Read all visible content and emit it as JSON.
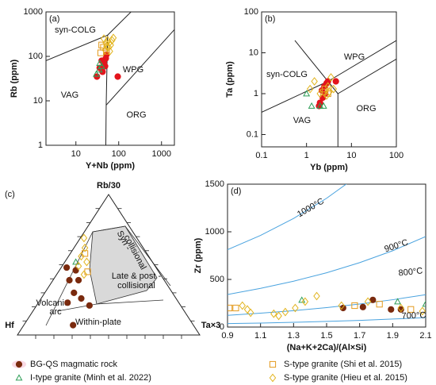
{
  "chart_data": [
    {
      "type": "scatter",
      "label": "(a)",
      "x_label": "Y+Nb (ppm)",
      "y_label": "Rb (ppm)",
      "log_x": true,
      "log_y": true,
      "xlim": [
        2,
        2000
      ],
      "ylim": [
        1,
        1000
      ],
      "xticks": [
        10,
        100,
        1000
      ],
      "yticks": [
        1,
        10,
        100,
        1000
      ],
      "field_labels": [
        "syn-COLG",
        "WPG",
        "VAG",
        "ORG"
      ],
      "boundaries": [
        {
          "x": [
            2,
            55
          ],
          "y": [
            80,
            300
          ]
        },
        {
          "x": [
            55,
            400
          ],
          "y": [
            300,
            2000
          ]
        },
        {
          "x": [
            55,
            51,
            50
          ],
          "y": [
            300,
            8,
            1
          ]
        },
        {
          "x": [
            51,
            2000
          ],
          "y": [
            8,
            400
          ]
        }
      ],
      "series": [
        {
          "name": "BG-QS magmatic rock",
          "color": "#e3141c",
          "marker": "circle",
          "x": [
            45,
            50,
            40,
            48,
            36,
            52,
            31,
            42,
            95
          ],
          "values": [
            70,
            90,
            80,
            60,
            55,
            110,
            35,
            45,
            35
          ]
        },
        {
          "name": "I-type granite (Minh et al. 2022)",
          "color": "#2e9e57",
          "marker": "triangle",
          "x": [
            30,
            35,
            40,
            36
          ],
          "values": [
            40,
            50,
            60,
            70
          ]
        },
        {
          "name": "S-type granite (Shi et al. 2015)",
          "color": "#e39a1e",
          "marker": "square",
          "x": [
            40,
            44,
            52,
            38
          ],
          "values": [
            180,
            160,
            130,
            120
          ]
        },
        {
          "name": "S-type granite (Hieu et al. 2015)",
          "color": "#e2b41e",
          "marker": "diamond",
          "x": [
            45,
            55,
            60,
            65,
            50,
            70,
            58,
            48,
            62,
            75,
            52
          ],
          "values": [
            250,
            230,
            200,
            180,
            200,
            230,
            160,
            140,
            130,
            260,
            170
          ]
        }
      ]
    },
    {
      "type": "scatter",
      "label": "(b)",
      "x_label": "Yb (ppm)",
      "y_label": "Ta (ppm)",
      "log_x": true,
      "log_y": true,
      "xlim": [
        0.1,
        100
      ],
      "ylim": [
        0.05,
        100
      ],
      "xticks": [
        0.1,
        1,
        10,
        100
      ],
      "yticks": [
        0.1,
        1,
        10,
        100
      ],
      "field_labels": [
        "WPG",
        "syn-COLG",
        "VAG",
        "ORG"
      ],
      "boundaries": [
        {
          "x": [
            0.1,
            3
          ],
          "y": [
            0.35,
            2
          ]
        },
        {
          "x": [
            0.55,
            3,
            5
          ],
          "y": [
            20,
            2,
            1
          ]
        },
        {
          "x": [
            3,
            100
          ],
          "y": [
            2,
            20
          ]
        },
        {
          "x": [
            5,
            100
          ],
          "y": [
            1,
            7
          ]
        },
        {
          "x": [
            5,
            5
          ],
          "y": [
            1,
            0.05
          ]
        }
      ],
      "series": [
        {
          "name": "BG-QS magmatic rock",
          "color": "#e3141c",
          "marker": "circle",
          "x": [
            2.5,
            3,
            2.2,
            2.8,
            2,
            2.3,
            4.5,
            2.6,
            1.9
          ],
          "values": [
            1.5,
            2,
            1.2,
            1.8,
            0.6,
            0.8,
            2,
            1,
            0.5
          ]
        },
        {
          "name": "I-type granite (Minh et al. 2022)",
          "color": "#2e9e57",
          "marker": "triangle",
          "x": [
            1,
            1.3,
            2,
            2.4
          ],
          "values": [
            1,
            0.5,
            0.5,
            0.5
          ]
        },
        {
          "name": "S-type granite (Shi et al. 2015)",
          "color": "#e39a1e",
          "marker": "square",
          "x": [
            2.6,
            3,
            2.4
          ],
          "values": [
            1.3,
            1,
            1.1
          ]
        },
        {
          "name": "S-type granite (Hieu et al. 2015)",
          "color": "#e2b41e",
          "marker": "diamond",
          "x": [
            1.5,
            2,
            3,
            3.5,
            1.2,
            3.2,
            2.8,
            4
          ],
          "values": [
            2,
            1,
            1.5,
            2.5,
            1.3,
            1.1,
            0.9,
            1.3
          ]
        }
      ]
    },
    {
      "type": "ternary",
      "label": "(c)",
      "apex_top": "Rb/30",
      "apex_left": "Hf",
      "apex_right": "Ta×3",
      "field_labels": [
        "Syn -",
        "collisional",
        "Late & post -",
        "collisional",
        "Volcanic",
        "arc",
        "Within-plate"
      ],
      "series": [
        {
          "name": "BG-QS magmatic rock",
          "color": "#7a2a0e",
          "marker": "circle",
          "hf": [
            49,
            45,
            52,
            47,
            54,
            52,
            61,
            50,
            66
          ],
          "rb": [
            48,
            46,
            39,
            39,
            30,
            26,
            23,
            21,
            7
          ],
          "ta": [
            3,
            9,
            9,
            14,
            16,
            22,
            16,
            29,
            27
          ]
        },
        {
          "name": "I-type granite (Minh et al. 2022)",
          "color": "#2e9e57",
          "marker": "triangle",
          "hf": [
            42
          ],
          "rb": [
            52
          ],
          "ta": [
            6
          ]
        },
        {
          "name": "S-type granite (Shi et al. 2015)",
          "color": "#e39a1e",
          "marker": "square",
          "hf": [
            34,
            39
          ],
          "rb": [
            58,
            45
          ],
          "ta": [
            8,
            16
          ]
        },
        {
          "name": "S-type granite (Hieu et al. 2015)",
          "color": "#e2b41e",
          "marker": "diamond",
          "hf": [
            29,
            32,
            37,
            36,
            42,
            42
          ],
          "rb": [
            69,
            62,
            56,
            52,
            43,
            49
          ],
          "ta": [
            2,
            6,
            7,
            12,
            15,
            9
          ]
        }
      ]
    },
    {
      "type": "scatter",
      "label": "(d)",
      "x_label": "(Na+K+2Ca)/(Al×Si)",
      "y_label": "Zr (ppm)",
      "log_x": false,
      "log_y": false,
      "xlim": [
        0.9,
        2.1
      ],
      "ylim": [
        0,
        1500
      ],
      "xticks": [
        0.9,
        1.1,
        1.3,
        1.5,
        1.7,
        1.9,
        2.1
      ],
      "yticks": [
        0,
        500,
        1000,
        1500
      ],
      "curve_color": "#4aa3df",
      "curves": [
        {
          "name": "1000°C",
          "x": [
            0.9,
            1.1,
            1.3,
            1.5,
            1.7
          ],
          "y": [
            812,
            962,
            1140,
            1352,
            1602
          ]
        },
        {
          "name": "900°C",
          "x": [
            0.9,
            1.1,
            1.3,
            1.5,
            1.7,
            1.9,
            2.1
          ],
          "y": [
            342,
            406,
            481,
            570,
            676,
            801,
            950
          ]
        },
        {
          "name": "800°C",
          "x": [
            0.9,
            1.1,
            1.3,
            1.5,
            1.7,
            1.9,
            2.1
          ],
          "y": [
            123,
            146,
            172,
            204,
            242,
            287,
            340
          ]
        },
        {
          "name": "700°C",
          "x": [
            0.9,
            1.1,
            1.3,
            1.5,
            1.7,
            1.9,
            2.1
          ],
          "y": [
            36,
            42,
            50,
            59,
            70,
            84,
            99
          ]
        }
      ],
      "series": [
        {
          "name": "BG-QS magmatic rock",
          "color": "#7a2a0e",
          "marker": "circle",
          "x": [
            1.6,
            1.72,
            1.78,
            1.89,
            1.95
          ],
          "values": [
            200,
            210,
            285,
            185,
            185
          ]
        },
        {
          "name": "I-type granite (Minh et al. 2022)",
          "color": "#2e9e57",
          "marker": "triangle",
          "x": [
            1.35,
            1.93,
            2.1
          ],
          "values": [
            283,
            267,
            242
          ]
        },
        {
          "name": "S-type granite (Shi et al. 2015)",
          "color": "#e39a1e",
          "marker": "square",
          "x": [
            0.91,
            0.95,
            1.67,
            1.82,
            2.01
          ],
          "values": [
            200,
            200,
            225,
            240,
            185
          ]
        },
        {
          "name": "S-type granite (Hieu et al. 2015)",
          "color": "#e2b41e",
          "marker": "diamond",
          "x": [
            0.99,
            1.02,
            1.04,
            1.18,
            1.21,
            1.25,
            1.31,
            1.37,
            1.44,
            1.59,
            1.75,
            1.95,
            2.08
          ],
          "values": [
            225,
            185,
            150,
            140,
            117,
            158,
            200,
            267,
            325,
            225,
            267,
            200,
            167
          ]
        }
      ]
    }
  ]
}
